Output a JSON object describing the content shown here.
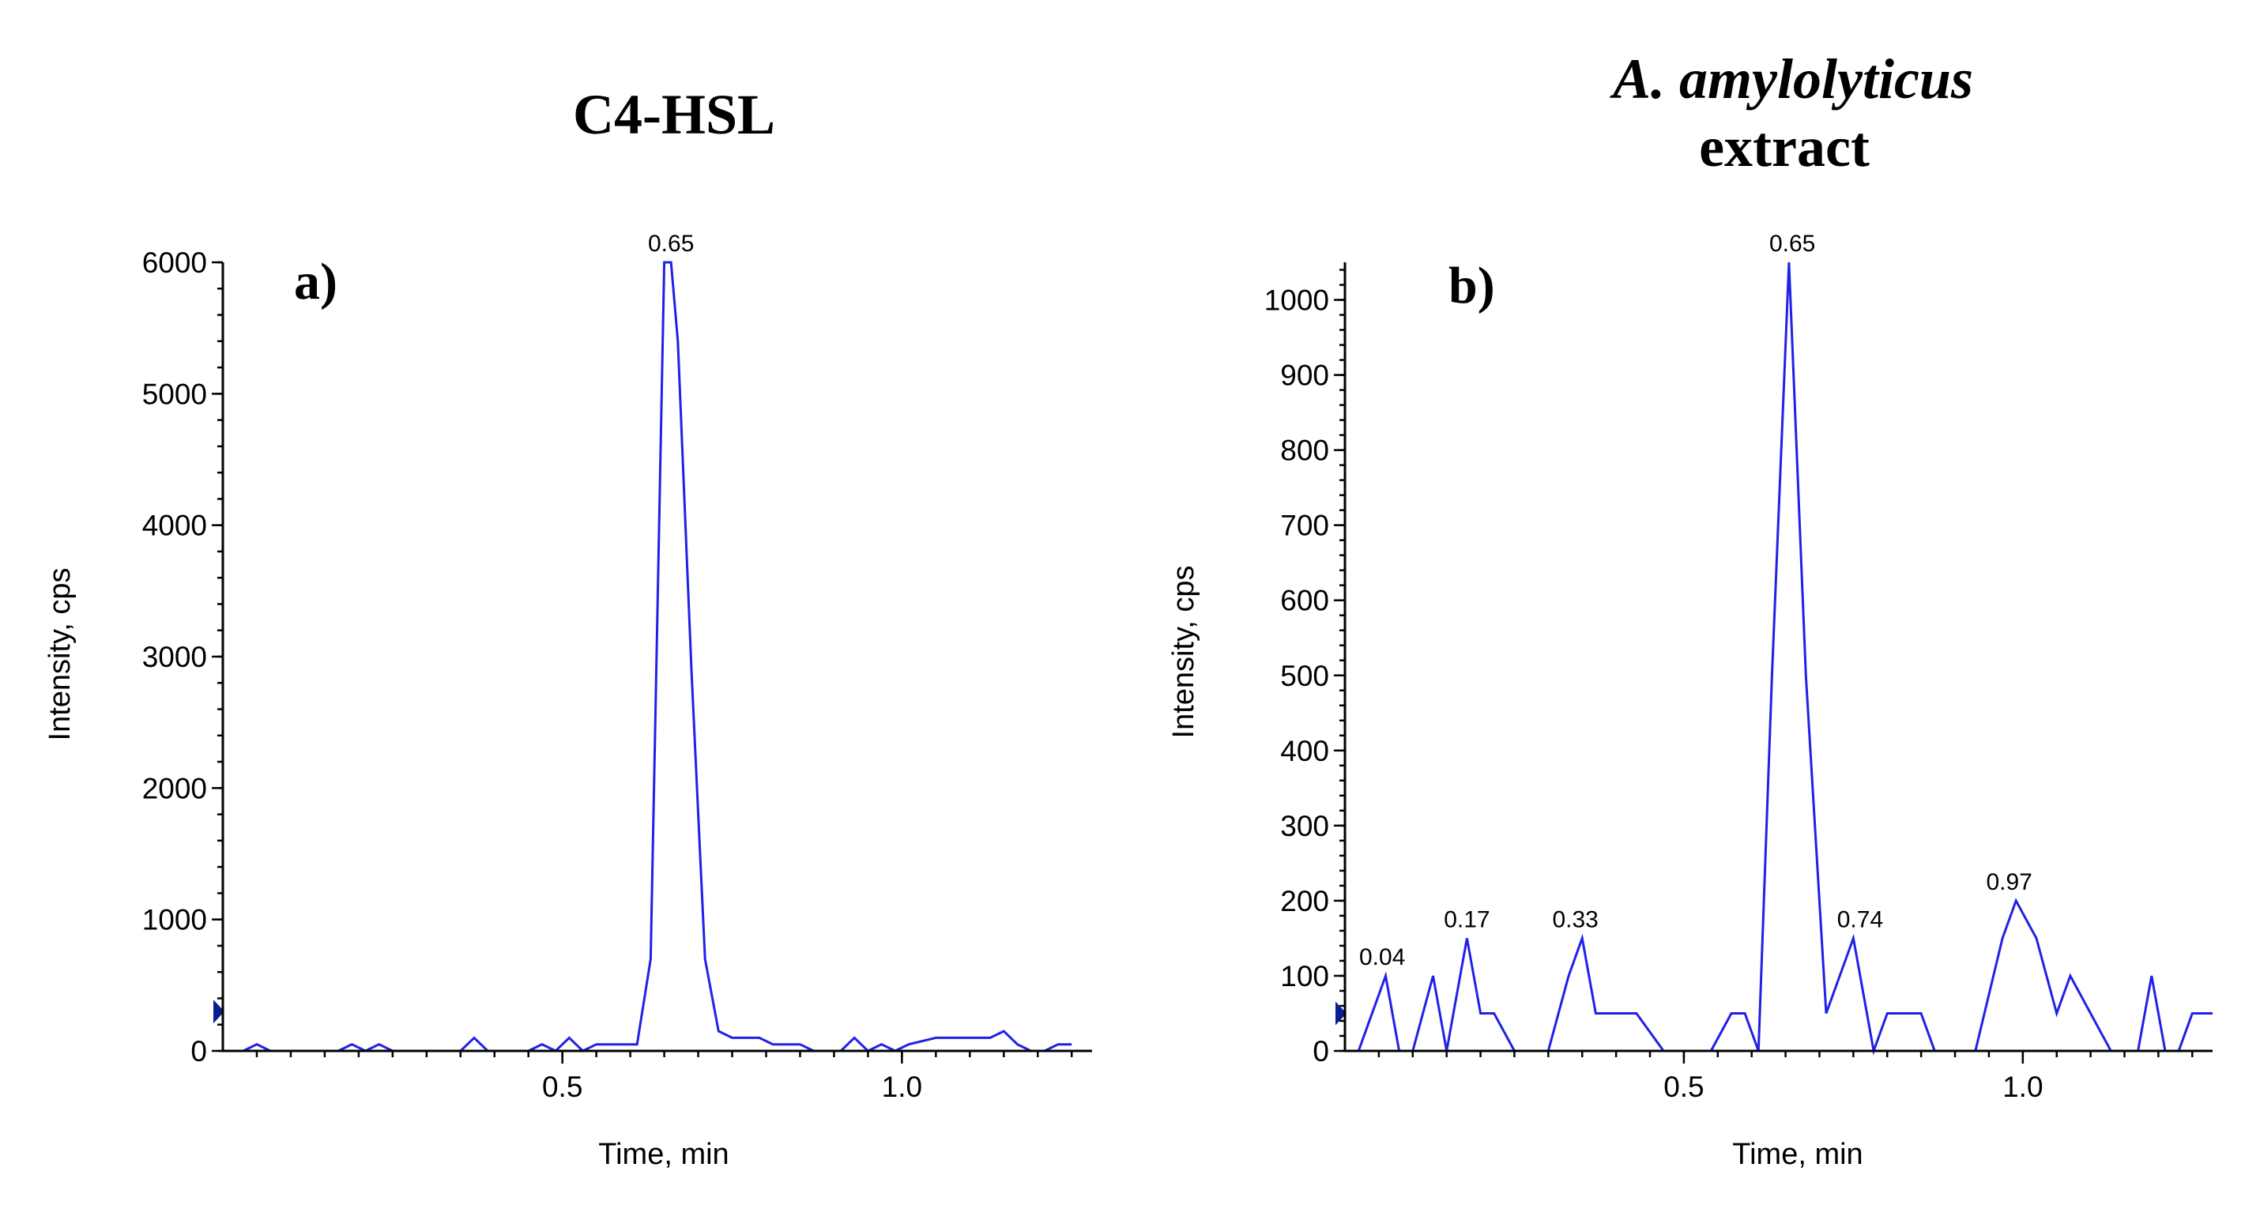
{
  "colors": {
    "trace": "#2020e8",
    "marker": "#0a1f8f",
    "axis": "#000000",
    "background": "#ffffff"
  },
  "chart_data": [
    {
      "type": "line",
      "title": "C4-HSL",
      "panel_label": "a)",
      "xlabel": "Time, min",
      "ylabel": "Intensity, cps",
      "xlim": [
        0.0,
        1.28
      ],
      "ylim": [
        0,
        6000
      ],
      "x_ticks": [
        0.5,
        1.0
      ],
      "x_tick_labels": [
        "0.5",
        "1.0"
      ],
      "y_ticks": [
        0,
        1000,
        2000,
        3000,
        4000,
        5000,
        6000
      ],
      "y_tick_labels": [
        "0",
        "1000",
        "2000",
        "3000",
        "4000",
        "5000",
        "6000"
      ],
      "marker_value": 300,
      "peak_labels": [
        {
          "text": "0.65",
          "x": 0.66,
          "y": 6000
        }
      ],
      "series": [
        {
          "name": "C4-HSL",
          "x": [
            0.03,
            0.05,
            0.07,
            0.17,
            0.19,
            0.21,
            0.23,
            0.25,
            0.35,
            0.37,
            0.39,
            0.45,
            0.47,
            0.49,
            0.51,
            0.53,
            0.55,
            0.61,
            0.63,
            0.65,
            0.66,
            0.67,
            0.69,
            0.71,
            0.73,
            0.75,
            0.79,
            0.81,
            0.85,
            0.87,
            0.91,
            0.93,
            0.95,
            0.97,
            0.99,
            1.01,
            1.05,
            1.09,
            1.13,
            1.15,
            1.17,
            1.19,
            1.21,
            1.23,
            1.25
          ],
          "y": [
            0,
            50,
            0,
            0,
            50,
            0,
            50,
            0,
            0,
            100,
            0,
            0,
            50,
            0,
            100,
            0,
            50,
            50,
            700,
            6000,
            6000,
            5400,
            2900,
            700,
            150,
            100,
            100,
            50,
            50,
            0,
            0,
            100,
            0,
            50,
            0,
            50,
            100,
            100,
            100,
            150,
            50,
            0,
            0,
            50,
            50
          ]
        }
      ]
    },
    {
      "type": "line",
      "title_italic": "A. amylolyticus",
      "title_line2": "extract",
      "panel_label": "b)",
      "xlabel": "Time, min",
      "ylabel": "Intensity, cps",
      "xlim": [
        0.0,
        1.28
      ],
      "ylim": [
        0,
        1050
      ],
      "x_ticks": [
        0.5,
        1.0
      ],
      "x_tick_labels": [
        "0.5",
        "1.0"
      ],
      "y_ticks": [
        0,
        100,
        200,
        300,
        400,
        500,
        600,
        700,
        800,
        900,
        1000
      ],
      "y_tick_labels": [
        "0",
        "100",
        "200",
        "300",
        "400",
        "500",
        "600",
        "700",
        "800",
        "900",
        "1000"
      ],
      "marker_value": 50,
      "peak_labels": [
        {
          "text": "0.04",
          "x": 0.055,
          "y": 100
        },
        {
          "text": "0.17",
          "x": 0.18,
          "y": 150
        },
        {
          "text": "0.33",
          "x": 0.34,
          "y": 150
        },
        {
          "text": "0.65",
          "x": 0.66,
          "y": 1050
        },
        {
          "text": "0.74",
          "x": 0.76,
          "y": 150
        },
        {
          "text": "0.97",
          "x": 0.98,
          "y": 200
        }
      ],
      "series": [
        {
          "name": "A. amylolyticus extract",
          "x": [
            0.0,
            0.02,
            0.06,
            0.08,
            0.1,
            0.13,
            0.15,
            0.18,
            0.2,
            0.22,
            0.25,
            0.3,
            0.33,
            0.35,
            0.37,
            0.4,
            0.43,
            0.47,
            0.54,
            0.57,
            0.59,
            0.61,
            0.63,
            0.655,
            0.68,
            0.71,
            0.75,
            0.78,
            0.8,
            0.82,
            0.85,
            0.87,
            0.93,
            0.97,
            0.99,
            1.02,
            1.05,
            1.07,
            1.13,
            1.17,
            1.19,
            1.21,
            1.23,
            1.25,
            1.28
          ],
          "y": [
            0,
            0,
            100,
            0,
            0,
            100,
            0,
            150,
            50,
            50,
            0,
            0,
            100,
            150,
            50,
            50,
            50,
            0,
            0,
            50,
            50,
            0,
            500,
            1050,
            500,
            50,
            150,
            0,
            50,
            50,
            50,
            0,
            0,
            150,
            200,
            150,
            50,
            100,
            0,
            0,
            100,
            0,
            0,
            50,
            50
          ]
        }
      ]
    }
  ]
}
